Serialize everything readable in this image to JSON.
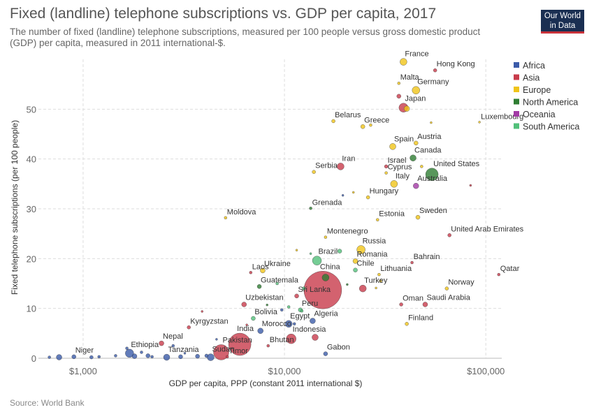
{
  "header": {
    "title": "Fixed (landline) telephone subscriptions vs. GDP per capita, 2017",
    "subtitle": "The number of fixed (landline) telephone subscriptions, measured per 100 people versus gross domestic product (GDP) per capita, measured in 2011 international-$.",
    "logo_line1": "Our World",
    "logo_line2": "in Data"
  },
  "footer": {
    "source": "Source: World Bank"
  },
  "chart_data": {
    "type": "scatter",
    "xlabel": "GDP per capita, PPP (constant 2011 international $)",
    "ylabel": "Fixed telephone subscriptions (per 100 people)",
    "xscale": "log",
    "xlim": [
      600,
      120000
    ],
    "ylim": [
      0,
      60
    ],
    "xticks": [
      {
        "value": 1000,
        "label": "$1,000"
      },
      {
        "value": 10000,
        "label": "$10,000"
      },
      {
        "value": 100000,
        "label": "$100,000"
      }
    ],
    "yticks": [
      {
        "value": 0,
        "label": "0"
      },
      {
        "value": 10,
        "label": "10"
      },
      {
        "value": 20,
        "label": "20"
      },
      {
        "value": 30,
        "label": "30"
      },
      {
        "value": 40,
        "label": "40"
      },
      {
        "value": 50,
        "label": "50"
      }
    ],
    "grid": true,
    "legend_position": "right",
    "regions": [
      {
        "name": "Africa",
        "color": "#3b5ba9"
      },
      {
        "name": "Asia",
        "color": "#c83b4b"
      },
      {
        "name": "Europe",
        "color": "#f0c419"
      },
      {
        "name": "North America",
        "color": "#2e7d32"
      },
      {
        "name": "Oceania",
        "color": "#a23aa5"
      },
      {
        "name": "South America",
        "color": "#52c07a"
      }
    ],
    "points": [
      {
        "label": "France",
        "x": 39000,
        "y": 59.5,
        "region": "Europe",
        "r": 5
      },
      {
        "label": "Hong Kong",
        "x": 56000,
        "y": 57.8,
        "region": "Asia",
        "r": 2.5
      },
      {
        "label": "Malta",
        "x": 37000,
        "y": 55.2,
        "region": "Europe",
        "r": 2
      },
      {
        "label": "Germany",
        "x": 45000,
        "y": 53.8,
        "region": "Europe",
        "r": 5.5
      },
      {
        "label": "Japan",
        "x": 39000,
        "y": 50.3,
        "region": "Asia",
        "r": 6.5
      },
      {
        "label": "",
        "x": 37000,
        "y": 52.6,
        "region": "Asia",
        "r": 3
      },
      {
        "label": "",
        "x": 40500,
        "y": 50.1,
        "region": "Europe",
        "r": 4
      },
      {
        "label": "Belarus",
        "x": 17500,
        "y": 47.6,
        "region": "Europe",
        "r": 2.5
      },
      {
        "label": "Greece",
        "x": 24500,
        "y": 46.5,
        "region": "Europe",
        "r": 3
      },
      {
        "label": "Luxembourg",
        "x": 93000,
        "y": 47.4,
        "region": "Europe",
        "r": 1.5
      },
      {
        "label": "",
        "x": 26800,
        "y": 46.8,
        "region": "Europe",
        "r": 2
      },
      {
        "label": "",
        "x": 53500,
        "y": 47.3,
        "region": "Europe",
        "r": 1.5
      },
      {
        "label": "Spain",
        "x": 34500,
        "y": 42.5,
        "region": "Europe",
        "r": 4.5
      },
      {
        "label": "Austria",
        "x": 45000,
        "y": 43.2,
        "region": "Europe",
        "r": 3
      },
      {
        "label": "Canada",
        "x": 43500,
        "y": 40.2,
        "region": "North America",
        "r": 4.5
      },
      {
        "label": "Iran",
        "x": 19000,
        "y": 38.5,
        "region": "Asia",
        "r": 5
      },
      {
        "label": "Israel",
        "x": 32000,
        "y": 38.5,
        "region": "Asia",
        "r": 2.5
      },
      {
        "label": "Cyprus",
        "x": 32000,
        "y": 37.2,
        "region": "Europe",
        "r": 2
      },
      {
        "label": "Serbia",
        "x": 14000,
        "y": 37.4,
        "region": "Europe",
        "r": 2.5
      },
      {
        "label": "United States",
        "x": 54000,
        "y": 36.9,
        "region": "North America",
        "r": 9
      },
      {
        "label": "Italy",
        "x": 35000,
        "y": 35.0,
        "region": "Europe",
        "r": 5
      },
      {
        "label": "Australia",
        "x": 45000,
        "y": 34.6,
        "region": "Oceania",
        "r": 4
      },
      {
        "label": "",
        "x": 48000,
        "y": 38.5,
        "region": "Europe",
        "r": 2
      },
      {
        "label": "",
        "x": 84000,
        "y": 34.7,
        "region": "Asia",
        "r": 1.5
      },
      {
        "label": "",
        "x": 19500,
        "y": 32.7,
        "region": "Africa",
        "r": 1.5
      },
      {
        "label": "",
        "x": 22000,
        "y": 33.3,
        "region": "Europe",
        "r": 1.5
      },
      {
        "label": "Hungary",
        "x": 26000,
        "y": 32.3,
        "region": "Europe",
        "r": 2.5
      },
      {
        "label": "Grenada",
        "x": 13500,
        "y": 30.1,
        "region": "North America",
        "r": 2
      },
      {
        "label": "Moldova",
        "x": 5100,
        "y": 28.2,
        "region": "Europe",
        "r": 2
      },
      {
        "label": "Estonia",
        "x": 29000,
        "y": 27.8,
        "region": "Europe",
        "r": 2
      },
      {
        "label": "Sweden",
        "x": 46000,
        "y": 28.3,
        "region": "Europe",
        "r": 3
      },
      {
        "label": "United Arab Emirates",
        "x": 66000,
        "y": 24.7,
        "region": "Asia",
        "r": 2.5
      },
      {
        "label": "Montenegro",
        "x": 16000,
        "y": 24.3,
        "region": "Europe",
        "r": 2
      },
      {
        "label": "Russia",
        "x": 24000,
        "y": 21.8,
        "region": "Europe",
        "r": 6
      },
      {
        "label": "Brazil",
        "x": 14500,
        "y": 19.6,
        "region": "South America",
        "r": 6.5
      },
      {
        "label": "",
        "x": 18800,
        "y": 21.5,
        "region": "South America",
        "r": 3
      },
      {
        "label": "Romania",
        "x": 22500,
        "y": 19.5,
        "region": "Europe",
        "r": 3.5
      },
      {
        "label": "Bahrain",
        "x": 43000,
        "y": 19.2,
        "region": "Asia",
        "r": 2
      },
      {
        "label": "Qatar",
        "x": 116000,
        "y": 16.8,
        "region": "Asia",
        "r": 2
      },
      {
        "label": "Chile",
        "x": 22500,
        "y": 17.7,
        "region": "South America",
        "r": 3
      },
      {
        "label": "Lithuania",
        "x": 29500,
        "y": 16.8,
        "region": "Europe",
        "r": 2
      },
      {
        "label": "Laos",
        "x": 6800,
        "y": 17.2,
        "region": "Asia",
        "r": 2
      },
      {
        "label": "Ukraine",
        "x": 7800,
        "y": 17.6,
        "region": "Europe",
        "r": 3.5
      },
      {
        "label": "China",
        "x": 15500,
        "y": 13.7,
        "region": "Asia",
        "r": 27
      },
      {
        "label": "",
        "x": 16000,
        "y": 16.2,
        "region": "North America",
        "r": 5
      },
      {
        "label": "Guatemala",
        "x": 7500,
        "y": 14.4,
        "region": "North America",
        "r": 3
      },
      {
        "label": "Turkey",
        "x": 24500,
        "y": 14.0,
        "region": "Asia",
        "r": 5
      },
      {
        "label": "Norway",
        "x": 64000,
        "y": 14.0,
        "region": "Europe",
        "r": 2.5
      },
      {
        "label": "Sri Lanka",
        "x": 11500,
        "y": 12.5,
        "region": "Asia",
        "r": 3
      },
      {
        "label": "Uzbekistan",
        "x": 6300,
        "y": 10.8,
        "region": "Asia",
        "r": 3.5
      },
      {
        "label": "Oman",
        "x": 38000,
        "y": 10.8,
        "region": "Asia",
        "r": 2.5
      },
      {
        "label": "Saudi Arabia",
        "x": 50000,
        "y": 10.8,
        "region": "Asia",
        "r": 3.5
      },
      {
        "label": "Peru",
        "x": 12000,
        "y": 9.7,
        "region": "South America",
        "r": 3
      },
      {
        "label": "Bolivia",
        "x": 7000,
        "y": 8.0,
        "region": "South America",
        "r": 3
      },
      {
        "label": "Algeria",
        "x": 13800,
        "y": 7.5,
        "region": "Africa",
        "r": 4
      },
      {
        "label": "Egypt",
        "x": 10500,
        "y": 6.9,
        "region": "Africa",
        "r": 5
      },
      {
        "label": "Finland",
        "x": 40500,
        "y": 6.9,
        "region": "Europe",
        "r": 2.5
      },
      {
        "label": "Kyrgyzstan",
        "x": 3350,
        "y": 6.2,
        "region": "Asia",
        "r": 2.5
      },
      {
        "label": "Morocco",
        "x": 7600,
        "y": 5.5,
        "region": "Africa",
        "r": 4
      },
      {
        "label": "Indonesia",
        "x": 10800,
        "y": 3.9,
        "region": "Asia",
        "r": 7
      },
      {
        "label": "India",
        "x": 6000,
        "y": 2.8,
        "region": "Asia",
        "r": 16
      },
      {
        "label": "Bhutan",
        "x": 8300,
        "y": 2.5,
        "region": "Asia",
        "r": 2
      },
      {
        "label": "Nepal",
        "x": 2450,
        "y": 3.0,
        "region": "Asia",
        "r": 3.5
      },
      {
        "label": "Ethiopia",
        "x": 1700,
        "y": 1.0,
        "region": "Africa",
        "r": 6
      },
      {
        "label": "Niger",
        "x": 900,
        "y": 0.3,
        "region": "Africa",
        "r": 3
      },
      {
        "label": "Tanzania",
        "x": 2600,
        "y": 0.2,
        "region": "Africa",
        "r": 4.5
      },
      {
        "label": "Pakistan",
        "x": 4850,
        "y": 1.2,
        "region": "Asia",
        "r": 11
      },
      {
        "label": "Sudan",
        "x": 4300,
        "y": 0.2,
        "region": "Africa",
        "r": 5
      },
      {
        "label": "Timor",
        "x": 5200,
        "y": 0.3,
        "region": "Asia",
        "r": 2
      },
      {
        "label": "Gabon",
        "x": 16000,
        "y": 0.9,
        "region": "Africa",
        "r": 3
      },
      {
        "label": "",
        "x": 1800,
        "y": 0.4,
        "region": "Africa",
        "r": 3.5
      },
      {
        "label": "",
        "x": 2100,
        "y": 0.5,
        "region": "Africa",
        "r": 3
      },
      {
        "label": "",
        "x": 3050,
        "y": 0.3,
        "region": "Africa",
        "r": 3
      },
      {
        "label": "",
        "x": 3700,
        "y": 0.4,
        "region": "Africa",
        "r": 3
      },
      {
        "label": "",
        "x": 680,
        "y": 0.2,
        "region": "Africa",
        "r": 2
      },
      {
        "label": "",
        "x": 760,
        "y": 0.2,
        "region": "Africa",
        "r": 4
      },
      {
        "label": "",
        "x": 1100,
        "y": 0.2,
        "region": "Africa",
        "r": 2.5
      },
      {
        "label": "",
        "x": 1450,
        "y": 0.5,
        "region": "Africa",
        "r": 2
      },
      {
        "label": "",
        "x": 1650,
        "y": 2.0,
        "region": "Africa",
        "r": 2
      },
      {
        "label": "",
        "x": 1950,
        "y": 1.2,
        "region": "Africa",
        "r": 2
      },
      {
        "label": "",
        "x": 2800,
        "y": 2.5,
        "region": "Africa",
        "r": 2
      },
      {
        "label": "",
        "x": 3200,
        "y": 1.0,
        "region": "Africa",
        "r": 1.5
      },
      {
        "label": "",
        "x": 1200,
        "y": 0.3,
        "region": "Africa",
        "r": 2
      },
      {
        "label": "",
        "x": 2200,
        "y": 0.3,
        "region": "Africa",
        "r": 2
      },
      {
        "label": "",
        "x": 4100,
        "y": 0.5,
        "region": "Africa",
        "r": 2.5
      },
      {
        "label": "",
        "x": 4600,
        "y": 3.8,
        "region": "Africa",
        "r": 1.5
      },
      {
        "label": "",
        "x": 11200,
        "y": 6.9,
        "region": "Africa",
        "r": 2
      },
      {
        "label": "",
        "x": 14200,
        "y": 4.2,
        "region": "Asia",
        "r": 4.5
      },
      {
        "label": "",
        "x": 9700,
        "y": 9.7,
        "region": "Africa",
        "r": 2
      },
      {
        "label": "",
        "x": 10500,
        "y": 10.3,
        "region": "South America",
        "r": 2
      },
      {
        "label": "",
        "x": 12200,
        "y": 9.5,
        "region": "South America",
        "r": 2
      },
      {
        "label": "",
        "x": 8200,
        "y": 10.7,
        "region": "North America",
        "r": 1.5
      },
      {
        "label": "",
        "x": 9200,
        "y": 15.0,
        "region": "South America",
        "r": 2
      },
      {
        "label": "",
        "x": 12500,
        "y": 14.0,
        "region": "South America",
        "r": 2.5
      },
      {
        "label": "",
        "x": 20500,
        "y": 14.8,
        "region": "North America",
        "r": 1.5
      },
      {
        "label": "",
        "x": 11500,
        "y": 21.7,
        "region": "Europe",
        "r": 1.5
      },
      {
        "label": "",
        "x": 13500,
        "y": 21.0,
        "region": "South America",
        "r": 1.5
      },
      {
        "label": "",
        "x": 3900,
        "y": 9.4,
        "region": "Asia",
        "r": 1.5
      },
      {
        "label": "",
        "x": 6500,
        "y": 6.7,
        "region": "Asia",
        "r": 1.5
      },
      {
        "label": "",
        "x": 30000,
        "y": 15.5,
        "region": "Europe",
        "r": 2
      },
      {
        "label": "",
        "x": 28500,
        "y": 14.1,
        "region": "Europe",
        "r": 1.5
      }
    ]
  }
}
